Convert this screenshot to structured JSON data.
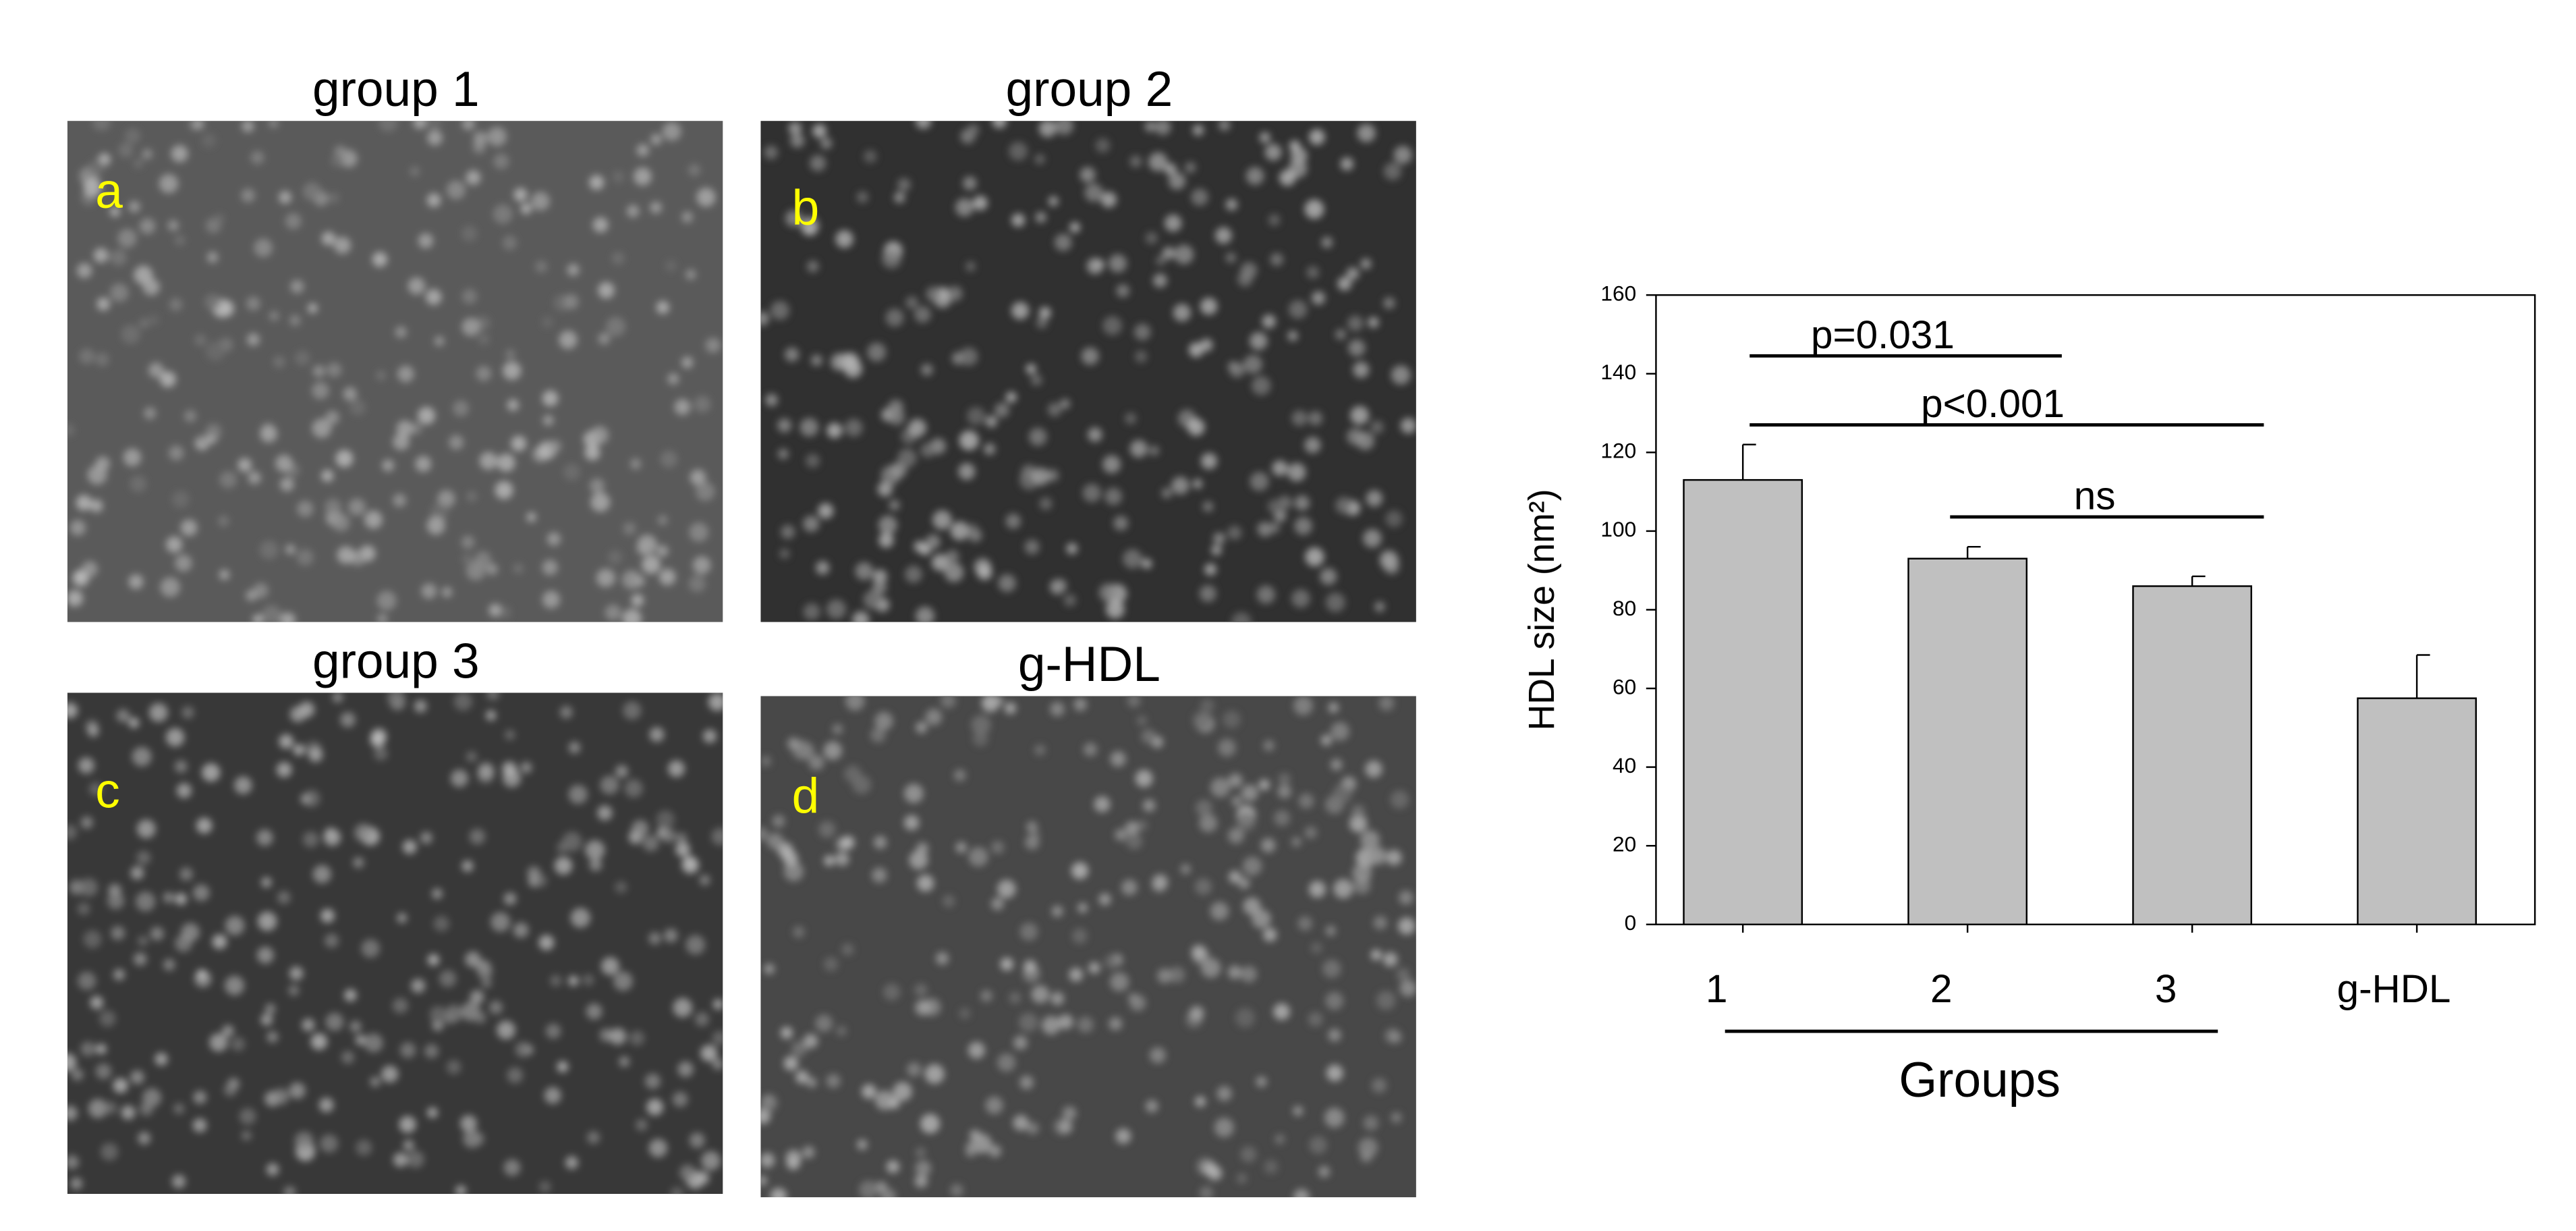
{
  "panels": [
    {
      "title": "group 1",
      "letter": "a"
    },
    {
      "title": "group 2",
      "letter": "b"
    },
    {
      "title": "group 3",
      "letter": "c"
    },
    {
      "title": "g-HDL",
      "letter": "d"
    }
  ],
  "chart_data": {
    "type": "bar",
    "ylabel": "HDL size (nm²)",
    "xlabel": "Groups",
    "categories": [
      "1",
      "2",
      "3",
      "g-HDL"
    ],
    "values": [
      113,
      93,
      86,
      57.5
    ],
    "errors": [
      9,
      3,
      2.5,
      11
    ],
    "color": "#c0c0c0",
    "ylim": [
      0,
      160
    ],
    "yticks": [
      0,
      20,
      40,
      60,
      80,
      100,
      120,
      140,
      160
    ],
    "annotations": [
      "p=0.031",
      "p<0.001",
      "ns"
    ]
  }
}
